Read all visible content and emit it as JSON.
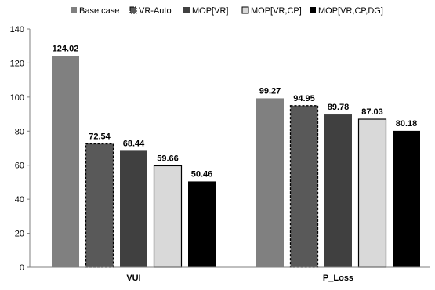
{
  "chart_data": {
    "type": "bar",
    "categories": [
      "VUI",
      "P_Loss"
    ],
    "series": [
      {
        "name": "Base case",
        "values": [
          124.02,
          99.27
        ],
        "color": "#808080",
        "pattern": "solid"
      },
      {
        "name": "VR-Auto",
        "values": [
          72.54,
          94.95
        ],
        "color": "#595959",
        "pattern": "dashed-border"
      },
      {
        "name": "MOP[VR]",
        "values": [
          68.44,
          89.78
        ],
        "color": "#404040",
        "pattern": "solid"
      },
      {
        "name": "MOP[VR,CP]",
        "values": [
          59.66,
          87.03
        ],
        "color": "#d9d9d9",
        "pattern": "solid"
      },
      {
        "name": "MOP[VR,CP,DG]",
        "values": [
          50.46,
          80.18
        ],
        "color": "#000000",
        "pattern": "solid"
      }
    ],
    "data_labels": [
      [
        "124.02",
        "99.27"
      ],
      [
        "72.54",
        "94.95"
      ],
      [
        "68.44",
        "89.78"
      ],
      [
        "59.66",
        "87.03"
      ],
      [
        "50.46",
        "80.18"
      ]
    ],
    "ylim": [
      0,
      140
    ],
    "yticks": [
      "0",
      "20",
      "40",
      "60",
      "80",
      "100",
      "120",
      "140"
    ],
    "xlabel": "",
    "ylabel": "",
    "grid": false,
    "legend_position": "top"
  }
}
